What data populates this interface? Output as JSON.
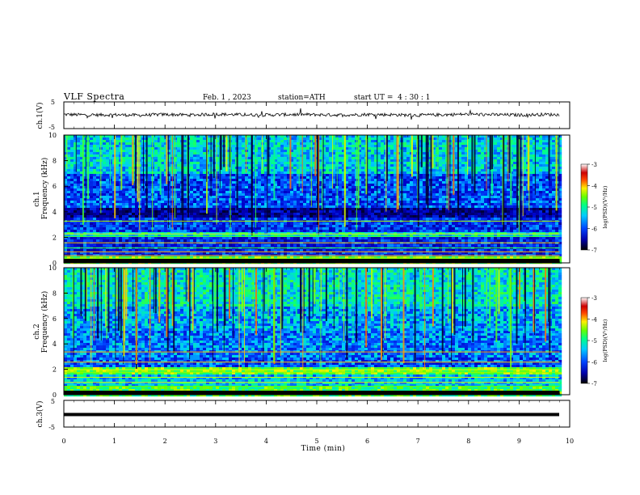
{
  "header": {
    "title": "VLF Spectra",
    "date": "Feb. 1 , 2023",
    "station": "station=ATH",
    "start": "start UT =  4 : 30 : 1"
  },
  "colors": {
    "spectrum": [
      "#000066",
      "#0000cc",
      "#0055ff",
      "#00ccff",
      "#00ff99",
      "#66ff00",
      "#ffff00",
      "#ff6600",
      "#cc0000",
      "#ff99cc",
      "#ffffff"
    ],
    "waveform": "#000000",
    "axes": "#000000"
  },
  "chart_data": [
    {
      "id": "ch1-waveform",
      "type": "line",
      "ylabel": "ch.1(V)",
      "ylim": [
        -5,
        5
      ],
      "yticks": [
        "5",
        "-5"
      ],
      "xlim": [
        0,
        10
      ],
      "series": [
        {
          "x": [
            0,
            0.5,
            1,
            1.5,
            2,
            2.5,
            3,
            3.5,
            4,
            4.5,
            5,
            5.5,
            6,
            6.5,
            7,
            7.5,
            8,
            8.5,
            9,
            9.5,
            9.8
          ],
          "values": [
            0.3,
            0.1,
            0.2,
            0.0,
            0.3,
            0.1,
            0.4,
            0.2,
            0.1,
            0.3,
            0.2,
            0.1,
            0.3,
            0.2,
            0.0,
            0.2,
            0.4,
            0.2,
            0.1,
            0.3,
            0.2
          ]
        }
      ]
    },
    {
      "id": "ch1-spectrogram",
      "type": "heatmap",
      "ylabel": "ch.1\nFrequency (kHz)",
      "ylim": [
        0,
        10
      ],
      "yticks": [
        "0",
        "2",
        "4",
        "6",
        "8",
        "10"
      ],
      "xlim": [
        0,
        10
      ],
      "data_extent_min": 9.8,
      "colorbar": {
        "label": "log(PSD)(V²/Hz)",
        "ticks": [
          "-3",
          "-4",
          "-5",
          "-6",
          "-7"
        ],
        "range": [
          -7,
          -3
        ]
      }
    },
    {
      "id": "ch2-spectrogram",
      "type": "heatmap",
      "ylabel": "ch.2\nFrequency (kHz)",
      "ylim": [
        0,
        10
      ],
      "yticks": [
        "0",
        "2",
        "4",
        "6",
        "8",
        "10"
      ],
      "xlim": [
        0,
        10
      ],
      "data_extent_min": 9.8,
      "colorbar": {
        "label": "log(PSD)(V²/Hz)",
        "ticks": [
          "-3",
          "-4",
          "-5",
          "-6",
          "-7"
        ],
        "range": [
          -7,
          -3
        ]
      }
    },
    {
      "id": "ch3-waveform",
      "type": "line",
      "ylabel": "ch.3(V)",
      "ylim": [
        -5,
        5
      ],
      "yticks": [
        "5",
        "-5"
      ],
      "xlim": [
        0,
        10
      ],
      "series": [
        {
          "x": [
            0,
            9.8
          ],
          "values": [
            -0.3,
            -0.3
          ]
        }
      ]
    }
  ],
  "x_axis": {
    "label": "Time (min)",
    "ticks": [
      "0",
      "1",
      "2",
      "3",
      "4",
      "5",
      "6",
      "7",
      "8",
      "9",
      "10"
    ]
  }
}
